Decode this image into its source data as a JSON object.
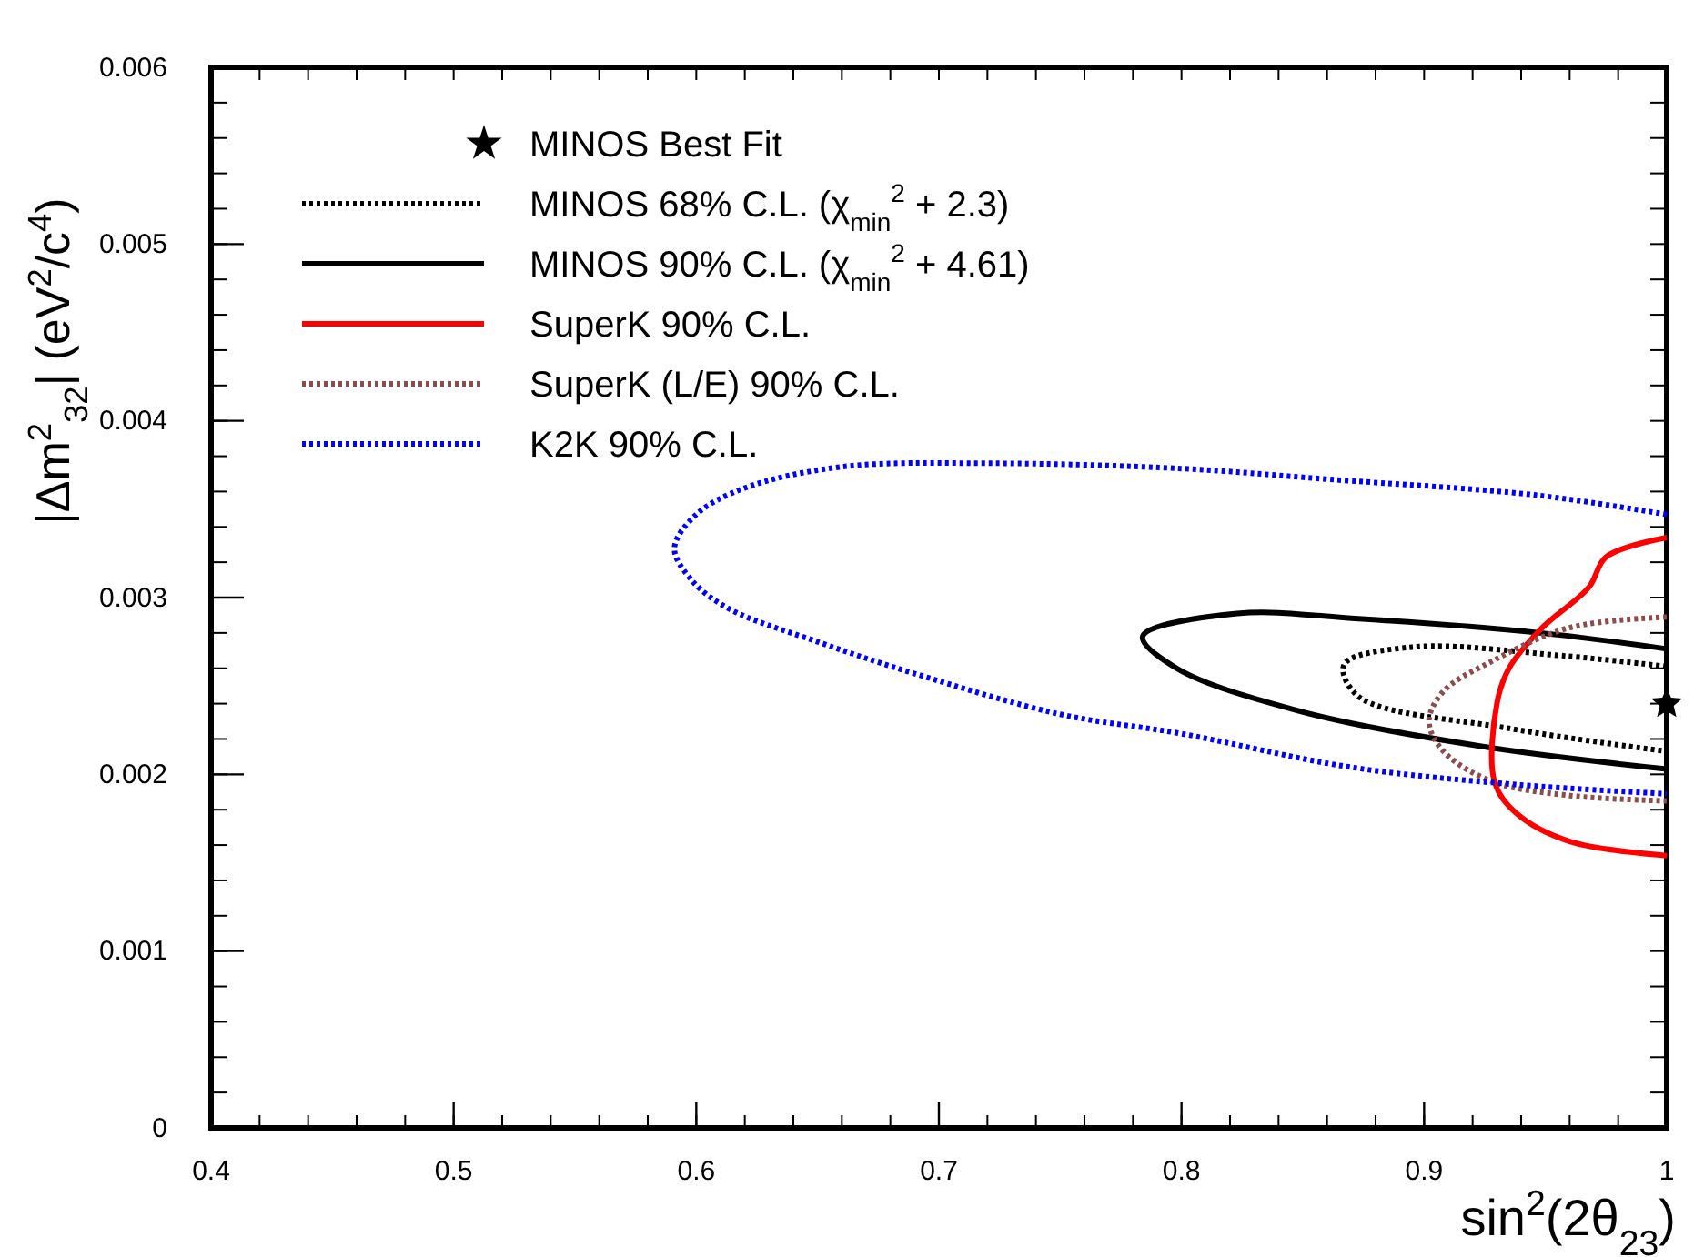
{
  "chart_data": {
    "type": "line",
    "xlabel": "sin$^{2}$(2θ$_{23}$)",
    "ylabel": "|Δm$^{2}$$_{32}$| (eV$^{2}$/c$^{4}$)",
    "xlim": [
      0.4,
      1
    ],
    "xticks": [
      0.4,
      0.5,
      0.6,
      0.7,
      0.8,
      0.9,
      1
    ],
    "ylim": [
      0,
      0.006
    ],
    "yticks": [
      0,
      0.001,
      0.002,
      0.003,
      0.004,
      0.005,
      0.006
    ],
    "grid": false,
    "legend": "top left",
    "series": [
      {
        "name": "MINOS Best Fit",
        "type": "scatter",
        "marker": "star",
        "color": "#000000",
        "x": [
          1.0
        ],
        "values": [
          0.0024
        ]
      },
      {
        "name": "MINOS 68% C.L. (χ$_{min}$$^{2}$ + 2.3)",
        "line_style": "dotted",
        "color": "#000000",
        "x": [
          1.0,
          0.958,
          0.895,
          0.867,
          0.873,
          0.935,
          1.0
        ],
        "values": [
          0.00261,
          0.00267,
          0.00272,
          0.00262,
          0.00244,
          0.00226,
          0.00213
        ]
      },
      {
        "name": "MINOS 90% C.L. (χ$_{min}$$^{2}$ + 4.61)",
        "line_style": "solid",
        "color": "#000000",
        "x": [
          1.0,
          0.948,
          0.873,
          0.823,
          0.784,
          0.798,
          0.848,
          0.923,
          1.0
        ],
        "values": [
          0.00271,
          0.0028,
          0.00288,
          0.00291,
          0.00278,
          0.0026,
          0.00236,
          0.00216,
          0.00203
        ]
      },
      {
        "name": "SuperK 90% C.L.",
        "line_style": "solid",
        "color": "#ff0000",
        "x": [
          1.0,
          0.975,
          0.968,
          0.948,
          0.935,
          0.93,
          0.929,
          0.938,
          0.96,
          1.0
        ],
        "values": [
          0.00334,
          0.00323,
          0.00306,
          0.00282,
          0.0026,
          0.0024,
          0.00196,
          0.00178,
          0.00162,
          0.00154
        ]
      },
      {
        "name": "SuperK (L/E) 90% C.L.",
        "line_style": "dotted",
        "color": "#8b4c4c",
        "x": [
          1.0,
          0.96,
          0.928,
          0.908,
          0.902,
          0.908,
          0.928,
          0.96,
          1.0
        ],
        "values": [
          0.00289,
          0.00283,
          0.00264,
          0.00247,
          0.0023,
          0.00213,
          0.00196,
          0.00188,
          0.00185
        ]
      },
      {
        "name": "K2K 90% C.L.",
        "line_style": "dotted",
        "color": "#0000ff",
        "x": [
          1.0,
          0.946,
          0.86,
          0.8,
          0.72,
          0.66,
          0.62,
          0.6,
          0.591,
          0.598,
          0.613,
          0.65,
          0.69,
          0.75,
          0.8,
          0.87,
          0.94,
          1.0
        ],
        "values": [
          0.00347,
          0.00358,
          0.00367,
          0.00373,
          0.00376,
          0.00374,
          0.00362,
          0.00347,
          0.00328,
          0.0031,
          0.00294,
          0.00275,
          0.00257,
          0.00234,
          0.00223,
          0.00204,
          0.00194,
          0.00189
        ]
      }
    ]
  }
}
